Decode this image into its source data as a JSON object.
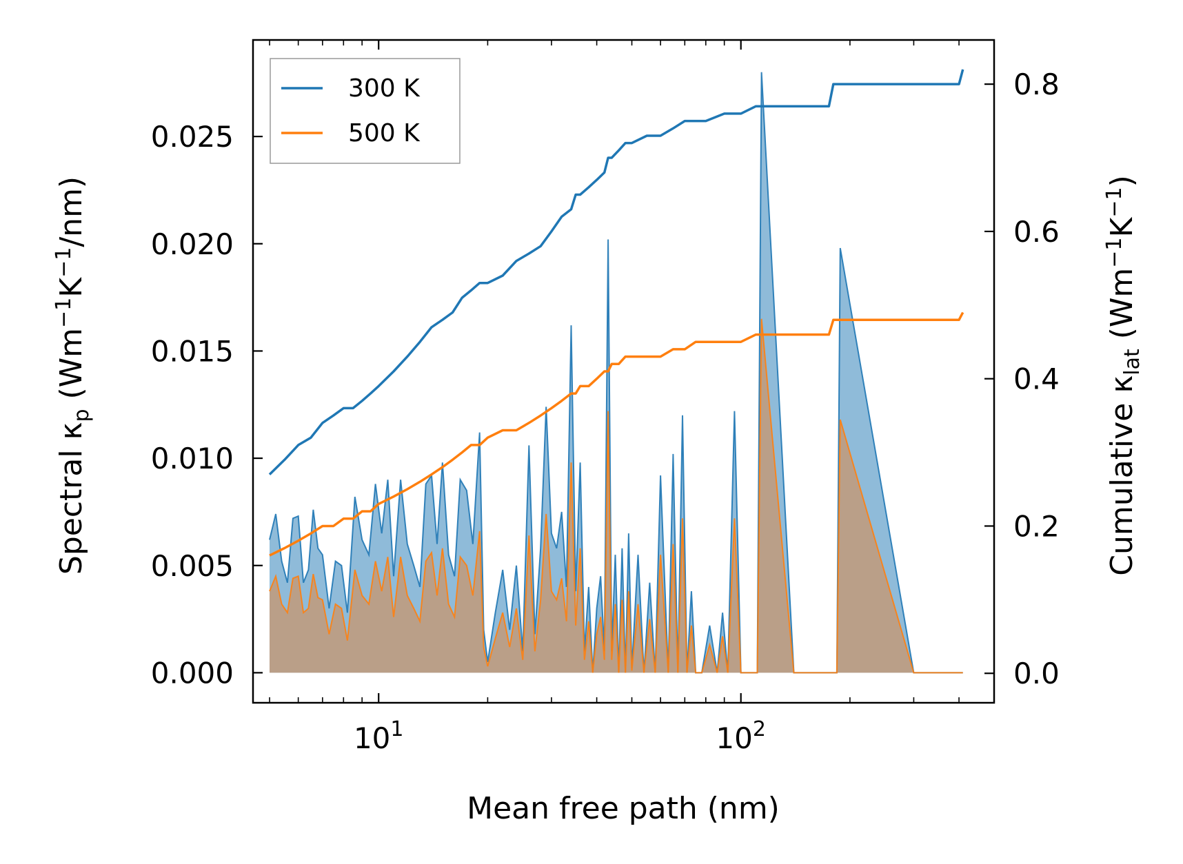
{
  "chart_data": {
    "type": "line",
    "xscale": "log",
    "xlabel": "Mean free path (nm)",
    "ylabel_left": {
      "pre": "Spectral κ",
      "sub": "p",
      "post": " (Wm",
      "sup1": "−1",
      "mid": "K",
      "sup2": "−1",
      "tail": "/nm)"
    },
    "ylabel_right": {
      "pre": "Cumulative κ",
      "sub": "lat",
      "post": " (Wm",
      "sup1": "−1",
      "mid": "K",
      "sup2": "−1",
      "tail": ")"
    },
    "xlim": [
      4.5,
      500
    ],
    "ylim_left": [
      -0.0014,
      0.0295
    ],
    "ylim_right": [
      -0.04,
      0.86
    ],
    "x_ticks": [
      {
        "value": 10,
        "base": "10",
        "exp": "1"
      },
      {
        "value": 100,
        "base": "10",
        "exp": "2"
      }
    ],
    "y_ticks_left": [
      "0.000",
      "0.005",
      "0.010",
      "0.015",
      "0.020",
      "0.025"
    ],
    "y_ticks_right": [
      "0.0",
      "0.2",
      "0.4",
      "0.6",
      "0.8"
    ],
    "legend": [
      {
        "label": "300 K",
        "color": "#1f77b4"
      },
      {
        "label": "500 K",
        "color": "#ff7f0e"
      }
    ],
    "legend_position": "top-left",
    "spectral_series": [
      {
        "name": "300 K",
        "color": "#1f77b4",
        "fill": "#1f77b4",
        "x": [
          5,
          5.2,
          5.4,
          5.6,
          5.8,
          6.0,
          6.2,
          6.4,
          6.6,
          6.8,
          7.0,
          7.3,
          7.6,
          7.9,
          8.2,
          8.6,
          9.0,
          9.4,
          9.8,
          10.2,
          10.6,
          11.0,
          11.5,
          12.0,
          12.5,
          13.0,
          13.5,
          14.0,
          14.5,
          15.0,
          15.6,
          16.2,
          16.8,
          17.5,
          18.2,
          19.0,
          19.5,
          20.0,
          21.0,
          22.0,
          23.0,
          24.0,
          25.0,
          26.0,
          27.0,
          28.0,
          29.0,
          30.0,
          31.0,
          32.0,
          33.0,
          34.0,
          35.0,
          36.0,
          37.0,
          38.0,
          39.0,
          40.0,
          41.0,
          42.0,
          43.0,
          44.0,
          45.0,
          46.0,
          47.0,
          48.0,
          49.0,
          50.0,
          52.0,
          54.0,
          56.0,
          58.0,
          60.0,
          63.0,
          65.0,
          67.0,
          69.0,
          71.0,
          73.0,
          75.0,
          78.0,
          82.0,
          86.0,
          89.0,
          92.0,
          96.0,
          100.0,
          104.0,
          108.0,
          111.0,
          114.0,
          140.0,
          172.0,
          176.0,
          180.0,
          184.0,
          188.0,
          300.0,
          395.0,
          405.0,
          410.0
        ],
        "y": [
          0.0062,
          0.0074,
          0.0052,
          0.0042,
          0.0072,
          0.0073,
          0.0042,
          0.0048,
          0.0076,
          0.0058,
          0.0055,
          0.003,
          0.0052,
          0.005,
          0.0028,
          0.0082,
          0.0062,
          0.0055,
          0.0088,
          0.0065,
          0.009,
          0.0045,
          0.009,
          0.006,
          0.005,
          0.004,
          0.0088,
          0.0092,
          0.006,
          0.0098,
          0.0055,
          0.0045,
          0.009,
          0.0085,
          0.006,
          0.0112,
          0.002,
          0.0005,
          0.0028,
          0.0048,
          0.002,
          0.005,
          0.001,
          0.0106,
          0.0018,
          0.0058,
          0.0124,
          0.0065,
          0.0058,
          0.0075,
          0.004,
          0.0162,
          0.0038,
          0.0098,
          0.001,
          0.004,
          0.0,
          0.003,
          0.0045,
          0.001,
          0.0202,
          0.001,
          0.0055,
          0.0,
          0.0058,
          0.0,
          0.0065,
          0.0002,
          0.0055,
          0.0,
          0.0042,
          0.0,
          0.0092,
          0.0,
          0.0102,
          0.0,
          0.012,
          0.0,
          0.0038,
          0.0,
          0.0,
          0.0022,
          0.0,
          0.0028,
          0.0,
          0.0122,
          0.0,
          0.0,
          0.0,
          0.0,
          0.028,
          0.0,
          0.0,
          0.0,
          0.0,
          0.0,
          0.0198,
          0.0,
          0.0,
          0.0,
          0.0
        ]
      },
      {
        "name": "500 K",
        "color": "#ff7f0e",
        "fill": "#c8956c",
        "x": [
          5,
          5.2,
          5.4,
          5.6,
          5.8,
          6.0,
          6.2,
          6.4,
          6.6,
          6.8,
          7.0,
          7.3,
          7.6,
          7.9,
          8.2,
          8.6,
          9.0,
          9.4,
          9.8,
          10.2,
          10.6,
          11.0,
          11.5,
          12.0,
          12.5,
          13.0,
          13.5,
          14.0,
          14.5,
          15.0,
          15.6,
          16.2,
          16.8,
          17.5,
          18.2,
          19.0,
          19.5,
          20.0,
          21.0,
          22.0,
          23.0,
          24.0,
          25.0,
          26.0,
          27.0,
          28.0,
          29.0,
          30.0,
          31.0,
          32.0,
          33.0,
          34.0,
          35.0,
          36.0,
          37.0,
          38.0,
          39.0,
          40.0,
          41.0,
          42.0,
          43.0,
          44.0,
          45.0,
          46.0,
          47.0,
          48.0,
          49.0,
          50.0,
          52.0,
          54.0,
          56.0,
          58.0,
          60.0,
          63.0,
          65.0,
          67.0,
          69.0,
          71.0,
          73.0,
          75.0,
          78.0,
          82.0,
          86.0,
          89.0,
          92.0,
          96.0,
          100.0,
          104.0,
          108.0,
          111.0,
          114.0,
          140.0,
          172.0,
          176.0,
          180.0,
          184.0,
          188.0,
          300.0,
          395.0,
          405.0,
          410.0
        ],
        "y": [
          0.0038,
          0.0045,
          0.0032,
          0.0028,
          0.0044,
          0.0045,
          0.0028,
          0.003,
          0.0046,
          0.0035,
          0.0034,
          0.0018,
          0.0032,
          0.003,
          0.0015,
          0.0048,
          0.0036,
          0.0032,
          0.0052,
          0.0038,
          0.0054,
          0.0026,
          0.0054,
          0.0036,
          0.003,
          0.0024,
          0.0052,
          0.0056,
          0.0036,
          0.0058,
          0.0032,
          0.0026,
          0.0054,
          0.005,
          0.0036,
          0.0066,
          0.0012,
          0.0003,
          0.0016,
          0.0028,
          0.0012,
          0.003,
          0.0006,
          0.0064,
          0.001,
          0.0034,
          0.0074,
          0.0038,
          0.0034,
          0.0044,
          0.0024,
          0.0098,
          0.0022,
          0.0058,
          0.0006,
          0.0024,
          0.0,
          0.0018,
          0.0026,
          0.0006,
          0.0122,
          0.0006,
          0.0032,
          0.0,
          0.0034,
          0.0,
          0.0038,
          0.0001,
          0.0032,
          0.0,
          0.0025,
          0.0,
          0.0055,
          0.0,
          0.006,
          0.0,
          0.0072,
          0.0,
          0.0022,
          0.0,
          0.0,
          0.0013,
          0.0,
          0.0017,
          0.0,
          0.0072,
          0.0,
          0.0,
          0.0,
          0.0,
          0.0165,
          0.0,
          0.0,
          0.0,
          0.0,
          0.0,
          0.0118,
          0.0,
          0.0,
          0.0,
          0.0
        ]
      }
    ],
    "cumulative_series": [
      {
        "name": "300 K",
        "color": "#1f77b4",
        "x": [
          5,
          5.5,
          6.0,
          6.5,
          7.0,
          7.5,
          8.0,
          8.5,
          9.0,
          9.5,
          10.0,
          11.0,
          12.0,
          13.0,
          14.0,
          15.0,
          16.0,
          17.0,
          18.0,
          19.0,
          20.0,
          22.0,
          24.0,
          26.0,
          28.0,
          30.0,
          32.0,
          34.0,
          35.0,
          36.0,
          38.0,
          40.0,
          42.0,
          43.0,
          44.0,
          46.0,
          48.0,
          50.0,
          55.0,
          60.0,
          65.0,
          70.0,
          75.0,
          80.0,
          90.0,
          100.0,
          110.0,
          120.0,
          150.0,
          175.0,
          180.0,
          200.0,
          300.0,
          400.0,
          410.0
        ],
        "y": [
          0.27,
          0.29,
          0.31,
          0.32,
          0.34,
          0.35,
          0.36,
          0.36,
          0.37,
          0.38,
          0.39,
          0.41,
          0.43,
          0.45,
          0.47,
          0.48,
          0.49,
          0.51,
          0.52,
          0.53,
          0.53,
          0.54,
          0.56,
          0.57,
          0.58,
          0.6,
          0.62,
          0.63,
          0.65,
          0.65,
          0.66,
          0.67,
          0.68,
          0.7,
          0.7,
          0.71,
          0.72,
          0.72,
          0.73,
          0.73,
          0.74,
          0.75,
          0.75,
          0.75,
          0.76,
          0.76,
          0.77,
          0.77,
          0.77,
          0.77,
          0.8,
          0.8,
          0.8,
          0.8,
          0.82
        ]
      },
      {
        "name": "500 K",
        "color": "#ff7f0e",
        "x": [
          5,
          5.5,
          6.0,
          6.5,
          7.0,
          7.5,
          8.0,
          8.5,
          9.0,
          9.5,
          10.0,
          11.0,
          12.0,
          13.0,
          14.0,
          15.0,
          16.0,
          17.0,
          18.0,
          19.0,
          20.0,
          22.0,
          24.0,
          26.0,
          28.0,
          30.0,
          32.0,
          34.0,
          35.0,
          36.0,
          38.0,
          40.0,
          42.0,
          43.0,
          44.0,
          46.0,
          48.0,
          50.0,
          55.0,
          60.0,
          65.0,
          70.0,
          75.0,
          80.0,
          90.0,
          100.0,
          110.0,
          120.0,
          150.0,
          175.0,
          180.0,
          200.0,
          300.0,
          400.0,
          410.0
        ],
        "y": [
          0.16,
          0.17,
          0.18,
          0.19,
          0.2,
          0.2,
          0.21,
          0.21,
          0.22,
          0.22,
          0.23,
          0.24,
          0.25,
          0.26,
          0.27,
          0.28,
          0.29,
          0.3,
          0.31,
          0.31,
          0.32,
          0.33,
          0.33,
          0.34,
          0.35,
          0.36,
          0.37,
          0.38,
          0.38,
          0.39,
          0.39,
          0.4,
          0.41,
          0.41,
          0.42,
          0.42,
          0.43,
          0.43,
          0.43,
          0.43,
          0.44,
          0.44,
          0.45,
          0.45,
          0.45,
          0.45,
          0.46,
          0.46,
          0.46,
          0.46,
          0.48,
          0.48,
          0.48,
          0.48,
          0.49
        ]
      }
    ]
  }
}
